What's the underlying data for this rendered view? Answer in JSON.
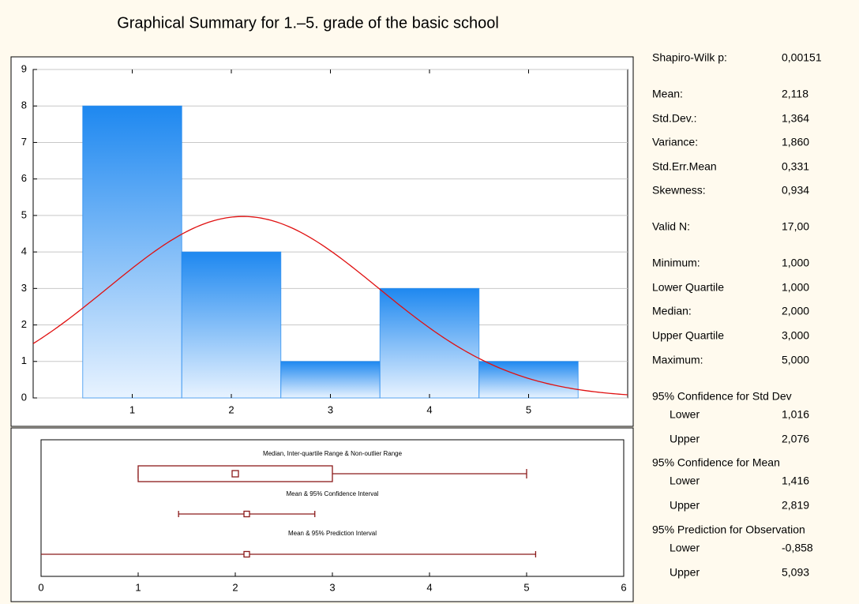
{
  "title": "Graphical Summary for 1.–5. grade of the basic school",
  "chart_data": [
    {
      "type": "histogram",
      "bins": [
        0.5,
        1.5,
        2.5,
        3.5,
        4.5,
        5.5
      ],
      "counts": [
        8,
        4,
        1,
        3,
        1
      ],
      "color": "#1e88f0",
      "curve": {
        "mean": 2.118,
        "sd": 1.364,
        "n": 17
      },
      "curve_color": "#e01010",
      "xlim": [
        0,
        6
      ],
      "xticks": [
        1,
        2,
        3,
        4,
        5
      ],
      "ylim": [
        0,
        9
      ],
      "yticks": [
        0,
        1,
        2,
        3,
        4,
        5,
        6,
        7,
        8,
        9
      ],
      "grid": true
    },
    {
      "type": "boxplot",
      "color": "#8b1a1a",
      "xlim": [
        0,
        6
      ],
      "xticks": [
        0,
        1,
        2,
        3,
        4,
        5,
        6
      ],
      "rows": [
        {
          "name": "Median, Inter-quartile Range & Non-outlier Range",
          "median": 2,
          "q1": 1,
          "q3": 3,
          "whisker_low": 1,
          "whisker_high": 5
        },
        {
          "name": "Mean & 95% Confidence Interval",
          "mean": 2.118,
          "low": 1.416,
          "high": 2.819
        },
        {
          "name": "Mean & 95% Prediction Interval",
          "mean": 2.118,
          "low": -0.858,
          "high": 5.093
        }
      ]
    }
  ],
  "stats": {
    "rows": [
      {
        "label": "Shapiro-Wilk p:",
        "value": "0,00151"
      },
      {
        "label": "Mean:",
        "value": "2,118"
      },
      {
        "label": "Std.Dev.:",
        "value": "1,364"
      },
      {
        "label": "Variance:",
        "value": "1,860"
      },
      {
        "label": "Std.Err.Mean",
        "value": "0,331"
      },
      {
        "label": "Skewness:",
        "value": "0,934"
      },
      {
        "label": "Valid N:",
        "value": "17,00"
      },
      {
        "label": "Minimum:",
        "value": "1,000"
      },
      {
        "label": "Lower Quartile",
        "value": "1,000"
      },
      {
        "label": "Median:",
        "value": "2,000"
      },
      {
        "label": "Upper Quartile",
        "value": "3,000"
      },
      {
        "label": "Maximum:",
        "value": "5,000"
      },
      {
        "label": "95% Confidence for Std Dev"
      },
      {
        "label": "Lower",
        "value": "1,016"
      },
      {
        "label": "Upper",
        "value": "2,076"
      },
      {
        "label": "95% Confidence for Mean"
      },
      {
        "label": "Lower",
        "value": "1,416"
      },
      {
        "label": "Upper",
        "value": "2,819"
      },
      {
        "label": "95% Prediction for Observation"
      },
      {
        "label": "Lower",
        "value": "-0,858"
      },
      {
        "label": "Upper",
        "value": "5,093"
      }
    ]
  }
}
